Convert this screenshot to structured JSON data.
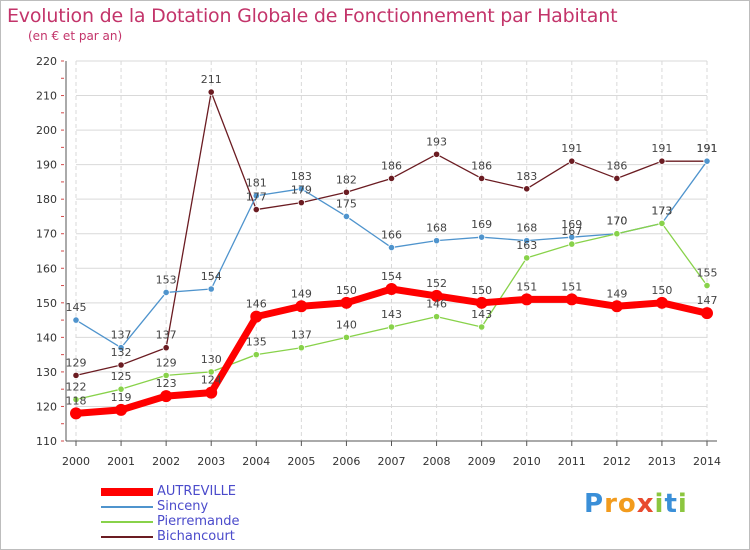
{
  "chart_data": {
    "type": "line",
    "title": "Evolution de la Dotation Globale de Fonctionnement par Habitant",
    "subtitle": "(en € et par an)",
    "x": [
      "2000",
      "2001",
      "2002",
      "2003",
      "2004",
      "2005",
      "2006",
      "2007",
      "2008",
      "2009",
      "2010",
      "2011",
      "2012",
      "2013",
      "2014"
    ],
    "ylim": [
      110,
      220
    ],
    "yticks": [
      110,
      120,
      130,
      140,
      150,
      160,
      170,
      180,
      190,
      200,
      210,
      220
    ],
    "grid": true,
    "legend_position": "bottom-left",
    "series": [
      {
        "name": "AUTREVILLE",
        "color": "#ff0000",
        "values": [
          118,
          119,
          123,
          124,
          146,
          149,
          150,
          154,
          152,
          150,
          151,
          151,
          149,
          150,
          147
        ]
      },
      {
        "name": "Sinceny",
        "color": "#4f94cd",
        "values": [
          145,
          137,
          153,
          154,
          181,
          183,
          175,
          166,
          168,
          169,
          168,
          169,
          170,
          173,
          191
        ]
      },
      {
        "name": "Pierremande",
        "color": "#88d24a",
        "values": [
          122,
          125,
          129,
          130,
          135,
          137,
          140,
          143,
          146,
          143,
          163,
          167,
          170,
          173,
          155
        ]
      },
      {
        "name": "Bichancourt",
        "color": "#6b1c22",
        "values": [
          129,
          132,
          137,
          211,
          177,
          179,
          182,
          186,
          193,
          186,
          183,
          191,
          186,
          191,
          191
        ]
      }
    ]
  },
  "logo": {
    "letters": [
      "P",
      "r",
      "o",
      "x",
      "i",
      "t",
      "i"
    ],
    "colors": [
      "#3a8fd8",
      "#f29b1d",
      "#f29b1d",
      "#e84a2f",
      "#8cc63f",
      "#3a8fd8",
      "#8cc63f"
    ]
  }
}
